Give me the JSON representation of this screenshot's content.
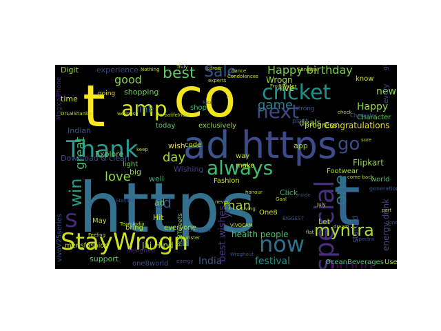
{
  "words": [
    {
      "text": "https",
      "color": "#33718e",
      "orientation": "horizontal"
    },
    {
      "text": "t",
      "color": "#31688e",
      "orientation": "horizontal"
    },
    {
      "text": "co",
      "color": "#f1e51d",
      "orientation": "horizontal"
    },
    {
      "text": "t",
      "color": "#fde725",
      "orientation": "horizontal"
    },
    {
      "text": "amp",
      "color": "#d8e219",
      "orientation": "horizontal"
    },
    {
      "text": "ad",
      "color": "#3b528b",
      "orientation": "horizontal"
    },
    {
      "text": "https",
      "color": "#3e4a89",
      "orientation": "horizontal"
    },
    {
      "text": "cricket",
      "color": "#21918c",
      "orientation": "horizontal"
    },
    {
      "text": "Thank",
      "color": "#2a9d8f",
      "orientation": "horizontal"
    },
    {
      "text": "StayWrogn",
      "color": "#d0e11c",
      "orientation": "horizontal"
    },
    {
      "text": "next",
      "color": "#3f4788",
      "orientation": "horizontal"
    },
    {
      "text": "now",
      "color": "#2c728e",
      "orientation": "horizontal"
    },
    {
      "text": "always",
      "color": "#3fbc73",
      "orientation": "horizontal"
    },
    {
      "text": "special",
      "color": "#472d7b",
      "orientation": "vertical-up"
    },
    {
      "text": "s",
      "color": "#482878",
      "orientation": "horizontal"
    },
    {
      "text": "Sale",
      "color": "#38588c",
      "orientation": "horizontal"
    },
    {
      "text": "best",
      "color": "#5ec962",
      "orientation": "horizontal"
    },
    {
      "text": "Happy birthday",
      "color": "#7ad151",
      "orientation": "horizontal"
    },
    {
      "text": "myntra",
      "color": "#addc30",
      "orientation": "horizontal"
    },
    {
      "text": "proud",
      "color": "#440154",
      "orientation": "horizontal"
    },
    {
      "text": "one",
      "color": "#2a788e",
      "orientation": "vertical-up"
    },
    {
      "text": "game",
      "color": "#26828e",
      "orientation": "horizontal"
    },
    {
      "text": "love",
      "color": "#8fd744",
      "orientation": "horizontal"
    },
    {
      "text": "win",
      "color": "#1fa088",
      "orientation": "vertical-up"
    },
    {
      "text": "day",
      "color": "#a5db36",
      "orientation": "horizontal"
    },
    {
      "text": "ad",
      "color": "#39568c",
      "orientation": "horizontal"
    },
    {
      "text": "man",
      "color": "#b5de2b",
      "orientation": "horizontal"
    },
    {
      "text": "great",
      "color": "#3dbc74",
      "orientation": "vertical-up"
    },
    {
      "text": "good",
      "color": "#84d44b",
      "orientation": "horizontal"
    },
    {
      "text": "Happy",
      "color": "#95d840",
      "orientation": "horizontal"
    },
    {
      "text": "Congratulations",
      "color": "#e5e419",
      "orientation": "horizontal"
    },
    {
      "text": "go",
      "color": "#3e4c8a",
      "orientation": "horizontal"
    },
    {
      "text": "new",
      "color": "#8bd646",
      "orientation": "horizontal"
    },
    {
      "text": "link",
      "color": "#2d708e",
      "orientation": "horizontal"
    },
    {
      "text": "festival",
      "color": "#20938c",
      "orientation": "horizontal"
    },
    {
      "text": "India",
      "color": "#365d8d",
      "orientation": "horizontal"
    },
    {
      "text": "Flipkart",
      "color": "#9bd93c",
      "orientation": "horizontal"
    },
    {
      "text": "Jai Hind",
      "color": "#b2dd2d",
      "orientation": "horizontal"
    },
    {
      "text": "best wishes",
      "color": "#46327e",
      "orientation": "vertical-up"
    },
    {
      "text": "shopping",
      "color": "#6ece58",
      "orientation": "horizontal"
    },
    {
      "text": "experience",
      "color": "#3f4889",
      "orientation": "horizontal"
    },
    {
      "text": "Wrogn",
      "color": "#a2da37",
      "orientation": "horizontal"
    },
    {
      "text": "live",
      "color": "#dde318",
      "orientation": "horizontal"
    },
    {
      "text": "Digit",
      "color": "#9bd93c",
      "orientation": "horizontal"
    },
    {
      "text": "shop",
      "color": "#38b977",
      "orientation": "horizontal"
    },
    {
      "text": "Character",
      "color": "#67cc5c",
      "orientation": "horizontal"
    },
    {
      "text": "Explore",
      "color": "#6ccd5a",
      "orientation": "horizontal"
    },
    {
      "text": "Indian",
      "color": "#3b528b",
      "orientation": "horizontal"
    },
    {
      "text": "time",
      "color": "#d2e21b",
      "orientation": "horizontal"
    },
    {
      "text": "code",
      "color": "#bade28",
      "orientation": "horizontal"
    },
    {
      "text": "wish",
      "color": "#e7e419",
      "orientation": "horizontal"
    },
    {
      "text": "deals",
      "color": "#9fda3a",
      "orientation": "horizontal"
    },
    {
      "text": "progress",
      "color": "#c5e021",
      "orientation": "horizontal"
    },
    {
      "text": "exclusively",
      "color": "#90d743",
      "orientation": "horizontal"
    },
    {
      "text": "app",
      "color": "#9bd93c",
      "orientation": "horizontal"
    },
    {
      "text": "today",
      "color": "#5cc863",
      "orientation": "horizontal"
    },
    {
      "text": "Download & clean",
      "color": "#3b528b",
      "orientation": "horizontal"
    },
    {
      "text": "light",
      "color": "#6ece58",
      "orientation": "horizontal"
    },
    {
      "text": "big",
      "color": "#95d840",
      "orientation": "horizontal"
    },
    {
      "text": "Wishing",
      "color": "#433e85",
      "orientation": "horizontal"
    },
    {
      "text": "Footwear",
      "color": "#a8db34",
      "orientation": "horizontal"
    },
    {
      "text": "well",
      "color": "#2db27d",
      "orientation": "horizontal"
    },
    {
      "text": "Fashion",
      "color": "#d8e219",
      "orientation": "horizontal"
    },
    {
      "text": "Click",
      "color": "#35b779",
      "orientation": "horizontal"
    },
    {
      "text": "world",
      "color": "#4ac16d",
      "orientation": "horizontal"
    },
    {
      "text": "year",
      "color": "#3b528b",
      "orientation": "vertical-up"
    },
    {
      "text": "way",
      "color": "#b5de2b",
      "orientation": "horizontal"
    },
    {
      "text": "make",
      "color": "#d2e21b",
      "orientation": "horizontal"
    },
    {
      "text": "May",
      "color": "#bade28",
      "orientation": "horizontal"
    },
    {
      "text": "Hit",
      "color": "#e2e418",
      "orientation": "horizontal"
    },
    {
      "text": "ad",
      "color": "#6ece58",
      "orientation": "horizontal"
    },
    {
      "text": "One8",
      "color": "#d8e219",
      "orientation": "horizontal"
    },
    {
      "text": "health people",
      "color": "#4ac16d",
      "orientation": "horizontal"
    },
    {
      "text": "support",
      "color": "#5ec962",
      "orientation": "horizontal"
    },
    {
      "text": "one8world",
      "color": "#3b528b",
      "orientation": "horizontal"
    },
    {
      "text": "bring",
      "color": "#b8de29",
      "orientation": "horizontal"
    },
    {
      "text": "everyone",
      "color": "#b5de2b",
      "orientation": "horizontal"
    },
    {
      "text": "Let",
      "color": "#9bd93c",
      "orientation": "horizontal"
    },
    {
      "text": "started",
      "color": "#3e4c8a",
      "orientation": "vertical-up"
    },
    {
      "text": "energy drink",
      "color": "#404688",
      "orientation": "vertical-up"
    },
    {
      "text": "OceanBeverages",
      "color": "#4ac16d",
      "orientation": "horizontal"
    },
    {
      "text": "Use",
      "color": "#b5de2b",
      "orientation": "horizontal"
    },
    {
      "text": "vivoV25series",
      "color": "#3b528b",
      "orientation": "vertical-up"
    },
    {
      "text": "MagicalPhone",
      "color": "#482878",
      "orientation": "vertical-up"
    },
    {
      "text": "mensfashion",
      "color": "#bade28",
      "orientation": "horizontal"
    },
    {
      "text": "RCBTweets",
      "color": "#6ece58",
      "orientation": "vertical-up"
    },
    {
      "text": "season",
      "color": "#3b528b",
      "orientation": "horizontal"
    },
    {
      "text": "strong",
      "color": "#3b528b",
      "orientation": "horizontal"
    },
    {
      "text": "plant",
      "color": "#3b528b",
      "orientation": "horizontal"
    },
    {
      "text": "designed",
      "color": "#482878",
      "orientation": "horizontal"
    },
    {
      "text": "every",
      "color": "#3e4c8a",
      "orientation": "vertical-up"
    },
    {
      "text": "know",
      "color": "#d8e219",
      "orientation": "horizontal"
    },
    {
      "text": "going",
      "color": "#d8e219",
      "orientation": "horizontal"
    },
    {
      "text": "glam",
      "color": "#3b528b",
      "orientation": "vertical-up"
    },
    {
      "text": "Character",
      "color": "#3b528b",
      "orientation": "horizontal"
    },
    {
      "text": "HerbalifeIndia",
      "color": "#bade28",
      "orientation": "horizontal"
    },
    {
      "text": "Condolences",
      "color": "#d8e219",
      "orientation": "horizontal"
    },
    {
      "text": "Sanjana",
      "color": "#d8e219",
      "orientation": "horizontal"
    },
    {
      "text": "career",
      "color": "#bade28",
      "orientation": "horizontal"
    },
    {
      "text": "dance",
      "color": "#bade28",
      "orientation": "horizontal"
    },
    {
      "text": "Nothing",
      "color": "#bade28",
      "orientation": "horizontal"
    },
    {
      "text": "generation",
      "color": "#3b528b",
      "orientation": "horizontal"
    },
    {
      "text": "July",
      "color": "#d8e219",
      "orientation": "horizontal"
    },
    {
      "text": "done",
      "color": "#3b528b",
      "orientation": "horizontal"
    },
    {
      "text": "Rise",
      "color": "#3b528b",
      "orientation": "horizontal"
    },
    {
      "text": "flat",
      "color": "#bade28",
      "orientation": "horizontal"
    },
    {
      "text": "BIGGEST",
      "color": "#3b528b",
      "orientation": "horizontal"
    },
    {
      "text": "Wroghout",
      "color": "#3b528b",
      "orientation": "horizontal"
    },
    {
      "text": "energy",
      "color": "#3b528b",
      "orientation": "horizontal"
    },
    {
      "text": "Tourister",
      "color": "#bade28",
      "orientation": "horizontal"
    },
    {
      "text": "honour",
      "color": "#bade28",
      "orientation": "horizontal"
    },
    {
      "text": "never",
      "color": "#bade28",
      "orientation": "horizontal"
    },
    {
      "text": "Truly",
      "color": "#bade28",
      "orientation": "horizontal"
    },
    {
      "text": "Fruit Water",
      "color": "#bade28",
      "orientation": "horizontal"
    },
    {
      "text": "VIVOCAM",
      "color": "#d8e219",
      "orientation": "horizontal"
    },
    {
      "text": "DrLalShankar",
      "color": "#bade28",
      "orientation": "horizontal"
    },
    {
      "text": "StayWel",
      "color": "#3b528b",
      "orientation": "horizontal"
    },
    {
      "text": "TeamIndia",
      "color": "#bade28",
      "orientation": "horizontal"
    },
    {
      "text": "wellness",
      "color": "#bade28",
      "orientation": "horizontal"
    },
    {
      "text": "check",
      "color": "#bade28",
      "orientation": "horizontal"
    },
    {
      "text": "sure",
      "color": "#bade28",
      "orientation": "horizontal"
    },
    {
      "text": "part",
      "color": "#bade28",
      "orientation": "horizontal"
    },
    {
      "text": "inside",
      "color": "#3b528b",
      "orientation": "horizontal"
    },
    {
      "text": "Goal",
      "color": "#bade28",
      "orientation": "horizontal"
    },
    {
      "text": "come back",
      "color": "#bade28",
      "orientation": "horizontal"
    },
    {
      "text": "Feeling",
      "color": "#bade28",
      "orientation": "horizontal"
    },
    {
      "text": "experts",
      "color": "#bade28",
      "orientation": "horizontal"
    },
    {
      "text": "Living",
      "color": "#bade28",
      "orientation": "horizontal"
    },
    {
      "text": "keep",
      "color": "#bade28",
      "orientation": "horizontal"
    },
    {
      "text": "Spectra",
      "color": "#3b528b",
      "orientation": "horizontal"
    },
    {
      "text": "dream",
      "color": "#bade28",
      "orientation": "horizontal"
    }
  ]
}
